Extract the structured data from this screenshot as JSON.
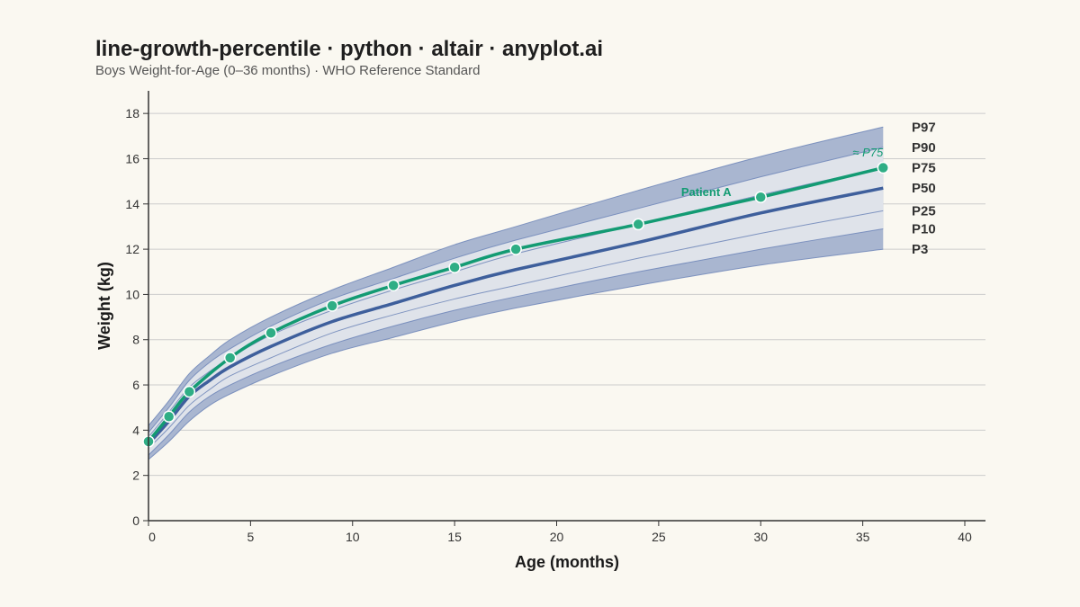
{
  "chart_data": {
    "type": "line",
    "title": "line-growth-percentile · python · altair · anyplot.ai",
    "subtitle": "Boys Weight-for-Age (0–36 months) · WHO Reference Standard",
    "xlabel": "Age (months)",
    "ylabel": "Weight (kg)",
    "xlim": [
      0,
      40
    ],
    "ylim": [
      0,
      19
    ],
    "x_ticks": [
      0,
      5,
      10,
      15,
      20,
      25,
      30,
      35,
      40
    ],
    "y_ticks": [
      0,
      2,
      4,
      6,
      8,
      10,
      12,
      14,
      16,
      18
    ],
    "grid": "horizontal",
    "colors": {
      "background": "#faf8f1",
      "outer_band": "#a9b6d0",
      "inner_band": "#dfe3ea",
      "band_edge": "#6e86b8",
      "median": "#3e5f9c",
      "patient": "#139b73",
      "grid": "#cccccc",
      "axis": "#333333"
    },
    "percentile_ages": [
      0,
      1,
      2,
      3,
      4,
      6,
      9,
      12,
      15,
      18,
      24,
      30,
      36
    ],
    "percentiles": [
      {
        "name": "P3",
        "values": [
          2.7,
          3.5,
          4.4,
          5.1,
          5.6,
          6.4,
          7.4,
          8.1,
          8.8,
          9.4,
          10.4,
          11.3,
          12.0
        ]
      },
      {
        "name": "P10",
        "values": [
          2.9,
          3.8,
          4.8,
          5.5,
          6.0,
          6.8,
          7.8,
          8.6,
          9.3,
          9.9,
          11.0,
          12.0,
          12.9
        ]
      },
      {
        "name": "P25",
        "values": [
          3.2,
          4.1,
          5.1,
          5.8,
          6.4,
          7.2,
          8.3,
          9.1,
          9.8,
          10.4,
          11.6,
          12.7,
          13.7
        ]
      },
      {
        "name": "P50",
        "values": [
          3.4,
          4.4,
          5.5,
          6.2,
          6.8,
          7.7,
          8.8,
          9.6,
          10.4,
          11.1,
          12.3,
          13.6,
          14.7
        ]
      },
      {
        "name": "P75",
        "values": [
          3.7,
          4.8,
          5.9,
          6.6,
          7.2,
          8.2,
          9.3,
          10.2,
          11.0,
          11.8,
          13.1,
          14.4,
          15.6
        ]
      },
      {
        "name": "P90",
        "values": [
          3.9,
          5.0,
          6.2,
          7.0,
          7.6,
          8.6,
          9.8,
          10.7,
          11.6,
          12.4,
          13.8,
          15.2,
          16.5
        ]
      },
      {
        "name": "P97",
        "values": [
          4.2,
          5.3,
          6.5,
          7.3,
          8.0,
          9.0,
          10.2,
          11.2,
          12.2,
          13.0,
          14.6,
          16.1,
          17.4
        ]
      }
    ],
    "patient": {
      "name": "Patient A",
      "annotation": "≈ P75",
      "x": [
        0,
        1,
        2,
        4,
        6,
        9,
        12,
        15,
        18,
        24,
        30,
        36
      ],
      "y": [
        3.5,
        4.6,
        5.7,
        7.2,
        8.3,
        9.5,
        10.4,
        11.2,
        12.0,
        13.1,
        14.3,
        15.6
      ]
    }
  }
}
